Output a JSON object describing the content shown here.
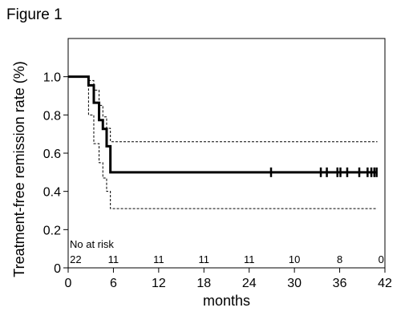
{
  "figure_title": "Figure 1",
  "chart_data": {
    "type": "line",
    "title": "",
    "xlabel": "months",
    "ylabel": "Treatment-free remission rate (%)",
    "xlim": [
      0,
      42
    ],
    "ylim": [
      0,
      1.2
    ],
    "x_ticks": [
      0,
      6,
      12,
      18,
      24,
      30,
      36,
      42
    ],
    "y_ticks": [
      0,
      0.2,
      0.4,
      0.6,
      0.8,
      1.0
    ],
    "y_tick_labels": [
      "0",
      "0.2",
      "0.4",
      "0.6",
      "0.8",
      "1.0"
    ],
    "grid": false,
    "series": [
      {
        "style": "solid-thick",
        "x": [
          0,
          2.7,
          3.4,
          4.1,
          4.6,
          5.1,
          5.6,
          41
        ],
        "y": [
          1.0,
          0.955,
          0.864,
          0.773,
          0.727,
          0.636,
          0.5,
          0.5
        ]
      },
      {
        "style": "dashed-upper-ci",
        "x": [
          0,
          2.7,
          3.4,
          4.1,
          4.6,
          5.1,
          5.6,
          41
        ],
        "y": [
          1.0,
          0.98,
          0.93,
          0.85,
          0.79,
          0.73,
          0.66,
          0.66
        ]
      },
      {
        "style": "dashed-lower-ci",
        "x": [
          0,
          2.7,
          3.4,
          4.1,
          4.6,
          5.1,
          5.6,
          41
        ],
        "y": [
          1.0,
          0.8,
          0.65,
          0.55,
          0.47,
          0.4,
          0.31,
          0.31
        ]
      }
    ],
    "censor_marks": {
      "x": [
        26.9,
        33.5,
        34.3,
        35.7,
        36.1,
        37.0,
        38.6,
        39.7,
        40.2,
        40.6,
        40.9
      ],
      "y": 0.5
    },
    "at_risk": {
      "title": "No at risk",
      "x": [
        1,
        6,
        12,
        18,
        24,
        30,
        36,
        41.5
      ],
      "labels": [
        "22",
        "11",
        "11",
        "11",
        "11",
        "10",
        "8",
        "0"
      ]
    }
  }
}
